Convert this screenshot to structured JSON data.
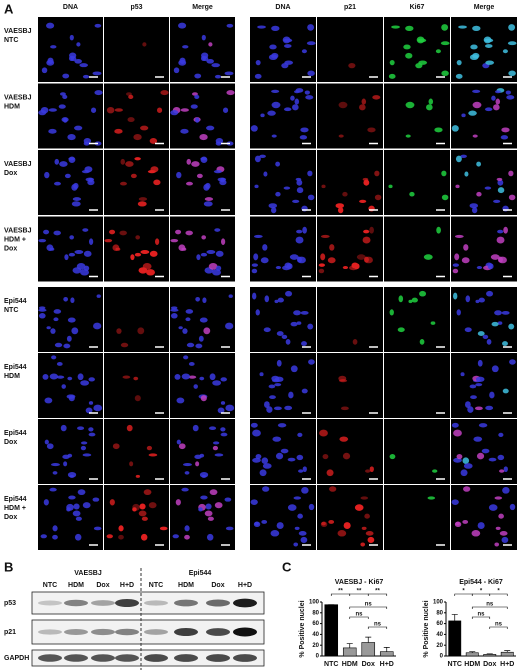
{
  "figure_labels": {
    "a": "A",
    "b": "B",
    "c": "C"
  },
  "panel_a": {
    "left": {
      "columns": [
        "DNA",
        "p53",
        "Merge"
      ],
      "column_colors": [
        "#3a3acc",
        "#d42020",
        "#000000"
      ]
    },
    "right": {
      "columns": [
        "DNA",
        "p21",
        "Ki67",
        "Merge"
      ],
      "column_colors": [
        "#3a3acc",
        "#d42020",
        "#1aa01a",
        "#000000"
      ]
    },
    "rows": [
      [
        "VAESBJ",
        "NTC"
      ],
      [
        "VAESBJ",
        "HDM"
      ],
      [
        "VAESBJ",
        "Dox"
      ],
      [
        "VAESBJ",
        "HDM +",
        "Dox"
      ],
      [
        "Epi544",
        "NTC"
      ],
      [
        "Epi544",
        "HDM"
      ],
      [
        "Epi544",
        "Dox"
      ],
      [
        "Epi544",
        "HDM +",
        "Dox"
      ]
    ]
  },
  "panel_b": {
    "groups": [
      "VAESBJ",
      "Epi544"
    ],
    "lanes": [
      "NTC",
      "HDM",
      "Dox",
      "H+D",
      "NTC",
      "HDM",
      "Dox",
      "H+D"
    ],
    "proteins": [
      "p53",
      "p21",
      "GAPDH"
    ]
  },
  "chart_data": [
    {
      "type": "bar",
      "title": "VAESBJ - Ki67",
      "y_label": "% Positive nuclei",
      "categories": [
        "NTC",
        "HDM",
        "Dox",
        "H+D"
      ],
      "values": [
        95,
        15,
        25,
        8
      ],
      "errors": [
        0,
        8,
        10,
        8
      ],
      "colors": [
        "#000000",
        "#999999",
        "#999999",
        "#999999"
      ],
      "ylim": [
        0,
        100
      ],
      "yticks": [
        0,
        20,
        40,
        60,
        80,
        100
      ],
      "annotations": [
        "**",
        "**",
        "**",
        "ns",
        "ns",
        "ns"
      ]
    },
    {
      "type": "bar",
      "title": "Epi544 - Ki67",
      "y_label": "% Positive nuclei",
      "categories": [
        "NTC",
        "HDM",
        "Dox",
        "H+D"
      ],
      "values": [
        65,
        6,
        3,
        7
      ],
      "errors": [
        12,
        2,
        1,
        3
      ],
      "colors": [
        "#000000",
        "#999999",
        "#999999",
        "#999999"
      ],
      "ylim": [
        0,
        100
      ],
      "yticks": [
        0,
        20,
        40,
        60,
        80,
        100
      ],
      "annotations": [
        "*",
        "*",
        "*",
        "ns",
        "ns",
        "ns"
      ]
    }
  ]
}
